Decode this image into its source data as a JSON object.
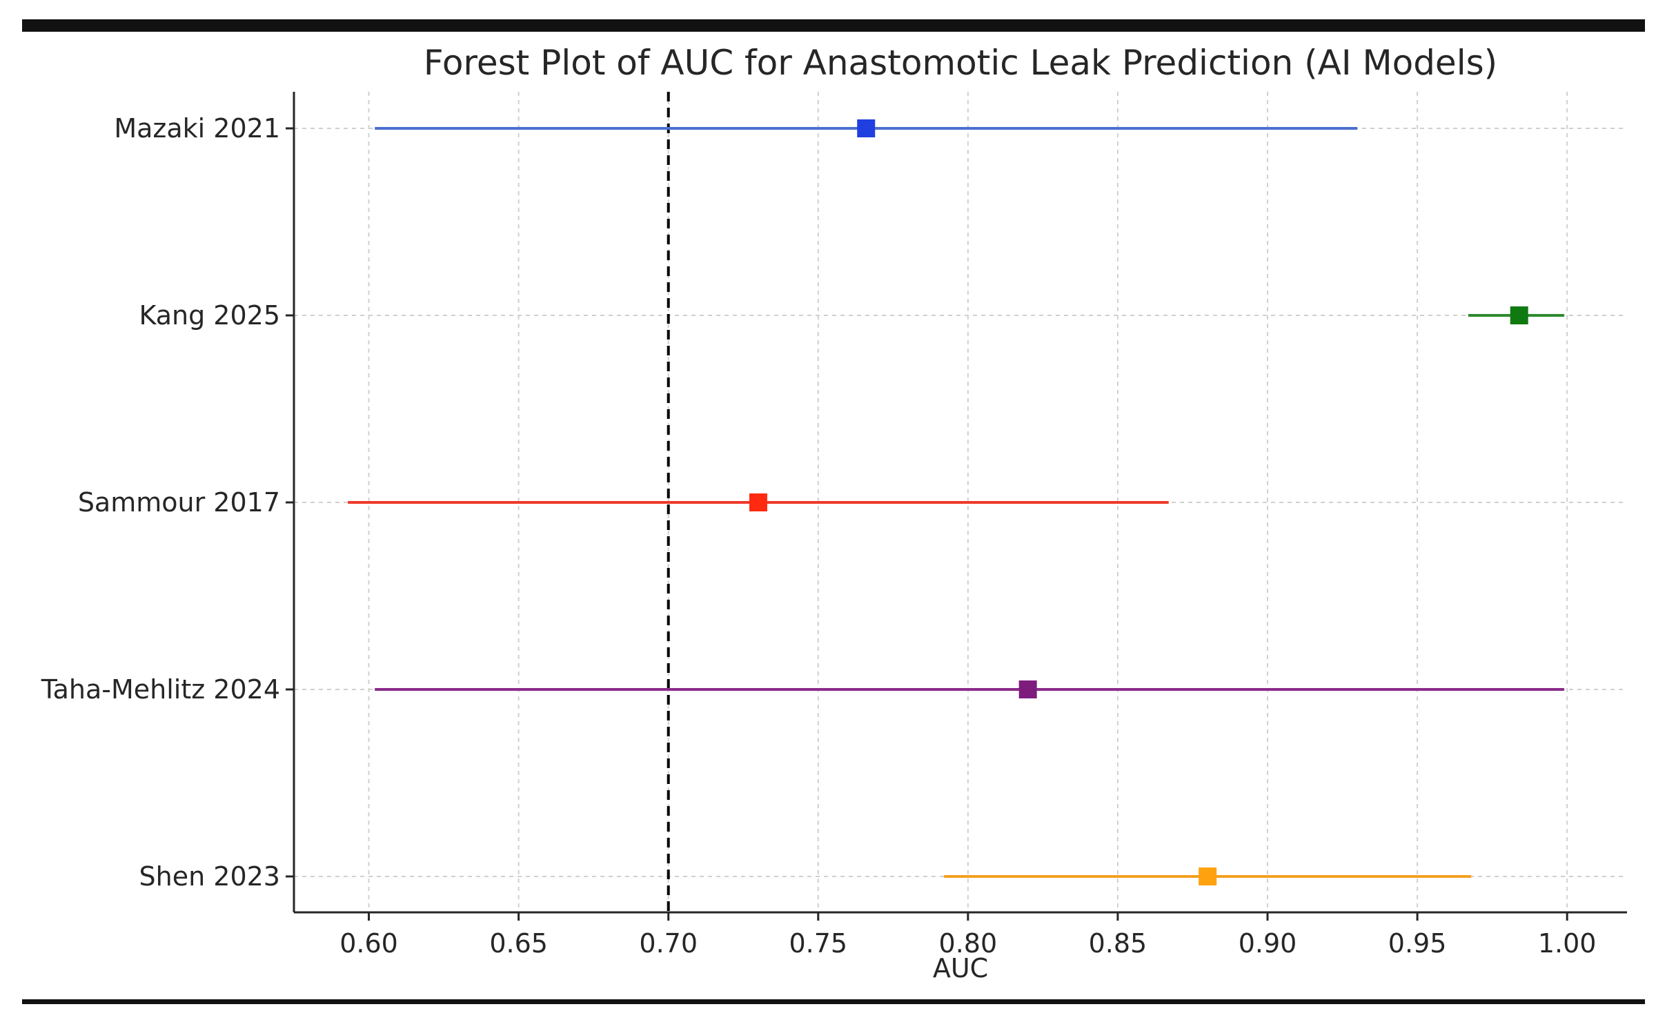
{
  "chart_data": {
    "type": "forest",
    "title": "Forest Plot of AUC for Anastomotic Leak Prediction (AI Models)",
    "xlabel": "AUC",
    "ylabel": "",
    "xlim": [
      0.575,
      1.02
    ],
    "xticks": [
      0.6,
      0.65,
      0.7,
      0.75,
      0.8,
      0.85,
      0.9,
      0.95,
      1.0
    ],
    "xtick_labels": [
      "0.60",
      "0.65",
      "0.70",
      "0.75",
      "0.80",
      "0.85",
      "0.90",
      "0.95",
      "1.00"
    ],
    "reference_line": {
      "x": 0.7,
      "style": "dashed",
      "color": "#000000"
    },
    "grid": true,
    "studies": [
      {
        "label": "Mazaki 2021",
        "auc": 0.766,
        "ci_low": 0.602,
        "ci_high": 0.93,
        "color": "#1f3fe0",
        "line_color": "#4a6fd0"
      },
      {
        "label": "Kang 2025",
        "auc": 0.984,
        "ci_low": 0.967,
        "ci_high": 0.999,
        "color": "#0f7a0f",
        "line_color": "#2e8b2e"
      },
      {
        "label": "Sammour 2017",
        "auc": 0.73,
        "ci_low": 0.593,
        "ci_high": 0.867,
        "color": "#ff2a0f",
        "line_color": "#ee3a2a"
      },
      {
        "label": "Taha-Mehlitz 2024",
        "auc": 0.82,
        "ci_low": 0.602,
        "ci_high": 0.999,
        "color": "#7e1c7e",
        "line_color": "#8a2a8a"
      },
      {
        "label": "Shen 2023",
        "auc": 0.88,
        "ci_low": 0.792,
        "ci_high": 0.968,
        "color": "#ffa20f",
        "line_color": "#f5a020"
      }
    ]
  }
}
